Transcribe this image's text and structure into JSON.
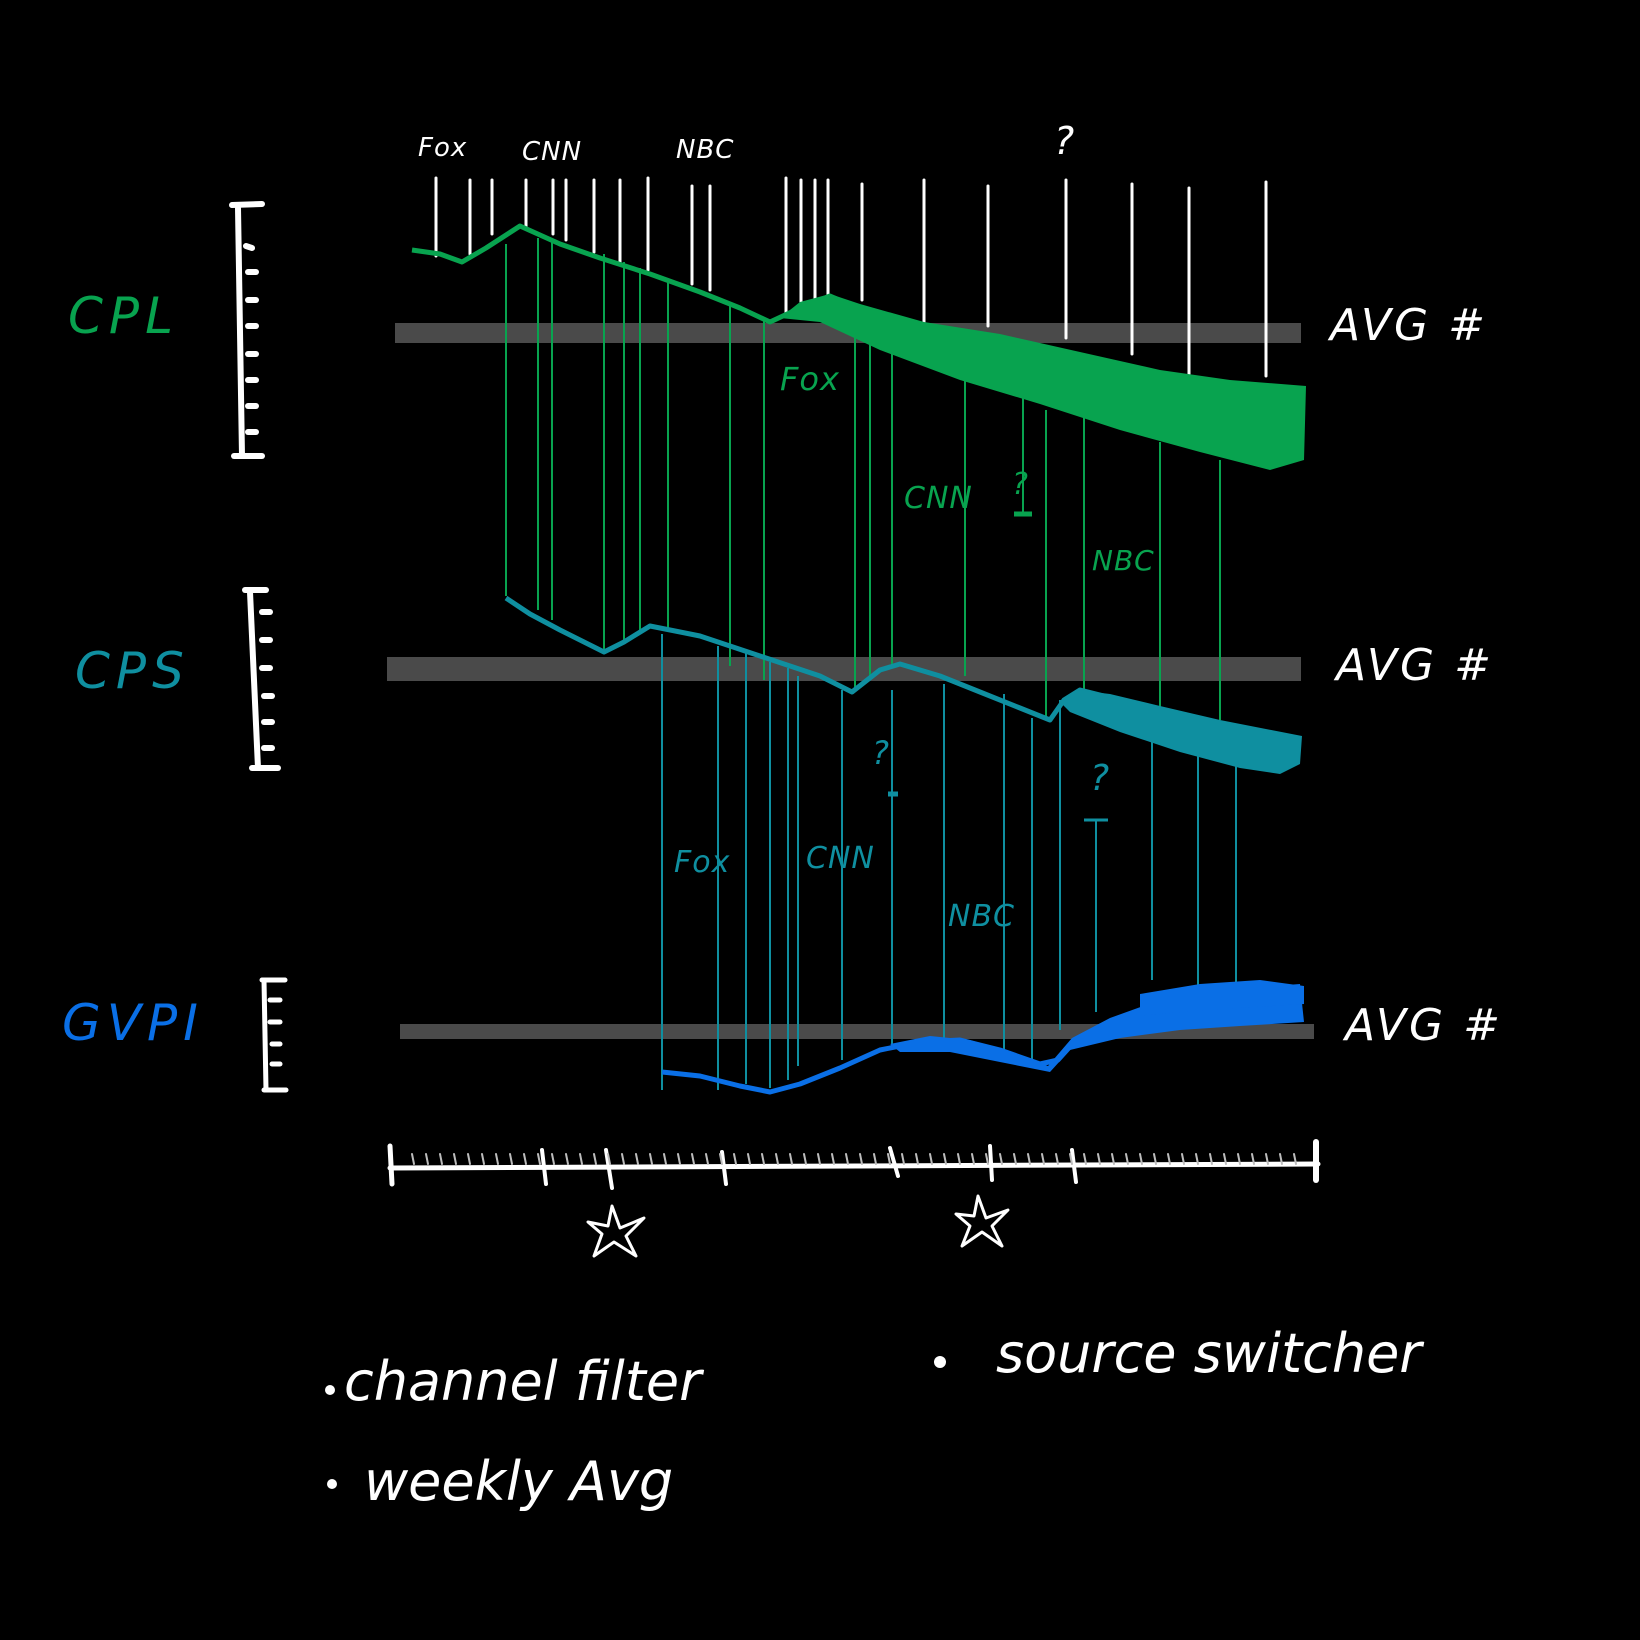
{
  "colors": {
    "background": "#000000",
    "ink": "#ffffff",
    "cpl": "#08a34f",
    "cps": "#0f8fa0",
    "gvpi": "#0a6fe6",
    "avg_band": "#4a4a4a"
  },
  "top_markers": [
    {
      "label": "Fox"
    },
    {
      "label": "CNN"
    },
    {
      "label": "NBC"
    },
    {
      "label": "?"
    }
  ],
  "rows": [
    {
      "id": "cpl",
      "label": "CPL",
      "avg_label": "AVG #",
      "markers": [
        {
          "label": "Fox"
        },
        {
          "label": "CNN"
        },
        {
          "label": "?"
        },
        {
          "label": "NBC"
        }
      ]
    },
    {
      "id": "cps",
      "label": "CPS",
      "avg_label": "AVG #",
      "markers": [
        {
          "label": "?"
        },
        {
          "label": "?"
        },
        {
          "label": "Fox"
        },
        {
          "label": "CNN"
        },
        {
          "label": "NBC"
        }
      ]
    },
    {
      "id": "gvpi",
      "label": "GVPI",
      "avg_label": "AVG #",
      "markers": []
    }
  ],
  "timeline": {
    "star_icon": "star-icon",
    "stars": 2
  },
  "notes": {
    "channel_filter": "channel filter",
    "weekly_avg": "weekly Avg",
    "source_switcher": "source switcher"
  }
}
